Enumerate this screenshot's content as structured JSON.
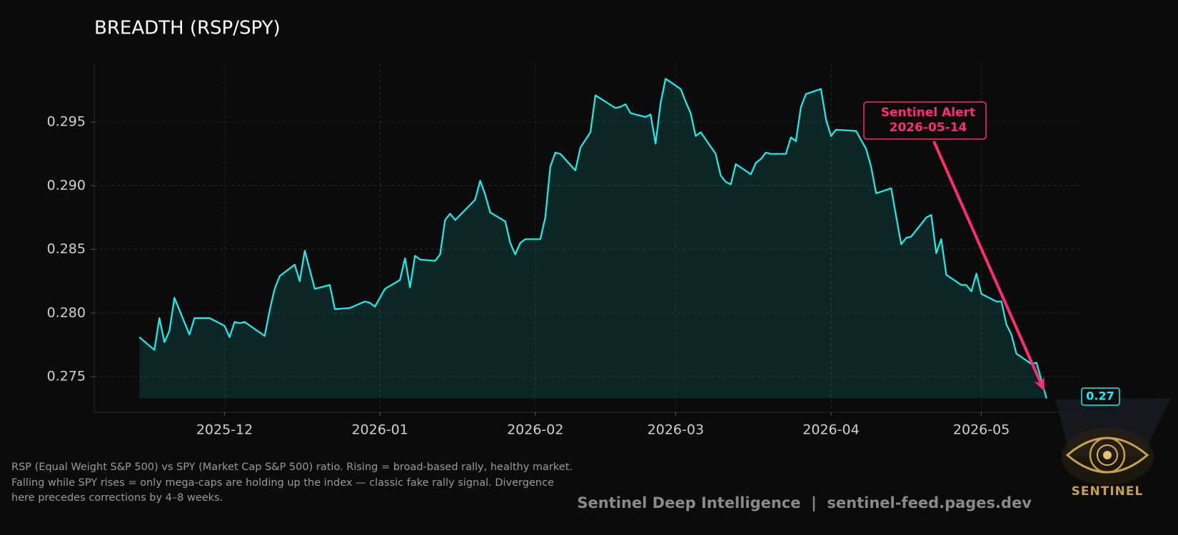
{
  "chart_data": {
    "type": "line",
    "title": "BREADTH (RSP/SPY)",
    "x": [
      "2025-11-14",
      "2025-11-17",
      "2025-11-18",
      "2025-11-19",
      "2025-11-20",
      "2025-11-21",
      "2025-11-24",
      "2025-11-25",
      "2025-11-28",
      "2025-12-01",
      "2025-12-02",
      "2025-12-03",
      "2025-12-04",
      "2025-12-05",
      "2025-12-09",
      "2025-12-10",
      "2025-12-11",
      "2025-12-12",
      "2025-12-15",
      "2025-12-16",
      "2025-12-17",
      "2025-12-19",
      "2025-12-22",
      "2025-12-23",
      "2025-12-26",
      "2025-12-29",
      "2025-12-30",
      "2025-12-31",
      "2026-01-02",
      "2026-01-05",
      "2026-01-06",
      "2026-01-07",
      "2026-01-08",
      "2026-01-09",
      "2026-01-12",
      "2026-01-13",
      "2026-01-14",
      "2026-01-15",
      "2026-01-16",
      "2026-01-20",
      "2026-01-21",
      "2026-01-22",
      "2026-01-23",
      "2026-01-26",
      "2026-01-27",
      "2026-01-28",
      "2026-01-29",
      "2026-01-30",
      "2026-02-02",
      "2026-02-03",
      "2026-02-04",
      "2026-02-05",
      "2026-02-06",
      "2026-02-09",
      "2026-02-10",
      "2026-02-12",
      "2026-02-13",
      "2026-02-17",
      "2026-02-18",
      "2026-02-19",
      "2026-02-20",
      "2026-02-23",
      "2026-02-24",
      "2026-02-25",
      "2026-02-26",
      "2026-02-27",
      "2026-03-02",
      "2026-03-03",
      "2026-03-04",
      "2026-03-05",
      "2026-03-06",
      "2026-03-09",
      "2026-03-10",
      "2026-03-11",
      "2026-03-12",
      "2026-03-13",
      "2026-03-16",
      "2026-03-17",
      "2026-03-18",
      "2026-03-19",
      "2026-03-20",
      "2026-03-23",
      "2026-03-24",
      "2026-03-25",
      "2026-03-26",
      "2026-03-27",
      "2026-03-30",
      "2026-03-31",
      "2026-04-01",
      "2026-04-02",
      "2026-04-06",
      "2026-04-08",
      "2026-04-09",
      "2026-04-10",
      "2026-04-13",
      "2026-04-14",
      "2026-04-15",
      "2026-04-16",
      "2026-04-17",
      "2026-04-20",
      "2026-04-21",
      "2026-04-22",
      "2026-04-23",
      "2026-04-24",
      "2026-04-27",
      "2026-04-28",
      "2026-04-29",
      "2026-04-30",
      "2026-05-01",
      "2026-05-04",
      "2026-05-05",
      "2026-05-06",
      "2026-05-07",
      "2026-05-08",
      "2026-05-11",
      "2026-05-12",
      "2026-05-14"
    ],
    "values": [
      0.2781,
      0.2771,
      0.2796,
      0.2777,
      0.2786,
      0.2812,
      0.2783,
      0.2796,
      0.2796,
      0.279,
      0.2781,
      0.2793,
      0.2792,
      0.2793,
      0.2782,
      0.2802,
      0.2819,
      0.2829,
      0.2838,
      0.2825,
      0.2849,
      0.2819,
      0.2822,
      0.2803,
      0.2804,
      0.2809,
      0.2808,
      0.2805,
      0.2819,
      0.2826,
      0.2843,
      0.282,
      0.2845,
      0.2842,
      0.2841,
      0.2846,
      0.2873,
      0.2878,
      0.2873,
      0.2889,
      0.2904,
      0.2893,
      0.2879,
      0.2872,
      0.2855,
      0.2846,
      0.2855,
      0.2858,
      0.2858,
      0.2875,
      0.2915,
      0.2926,
      0.2925,
      0.2912,
      0.293,
      0.2942,
      0.2971,
      0.2961,
      0.2962,
      0.2964,
      0.2957,
      0.2954,
      0.2956,
      0.2933,
      0.2965,
      0.2984,
      0.2976,
      0.2966,
      0.2957,
      0.2939,
      0.2942,
      0.2925,
      0.2908,
      0.2903,
      0.2901,
      0.2917,
      0.2909,
      0.2918,
      0.2921,
      0.2926,
      0.2925,
      0.2925,
      0.2938,
      0.2935,
      0.2962,
      0.2972,
      0.2976,
      0.2952,
      0.2939,
      0.2944,
      0.2943,
      0.2929,
      0.2915,
      0.2894,
      0.2898,
      0.2876,
      0.2854,
      0.2859,
      0.286,
      0.2875,
      0.2877,
      0.2847,
      0.2858,
      0.283,
      0.2822,
      0.2822,
      0.2817,
      0.2831,
      0.2815,
      0.2809,
      0.2809,
      0.2791,
      0.2783,
      0.2768,
      0.276,
      0.2761,
      0.2733
    ],
    "color": "#19f0f0",
    "end_label": "0.27",
    "xlim": [
      "2025-11-05",
      "2026-05-21"
    ],
    "xticks": [
      "2025-12",
      "2026-01",
      "2026-02",
      "2026-03",
      "2026-04",
      "2026-05"
    ],
    "ylim": [
      0.2722,
      0.2996
    ],
    "yticks": [
      0.275,
      {
        "value": 0.28,
        "label": "0.280"
      },
      0.285,
      {
        "value": 0.29,
        "label": "0.290"
      },
      0.295
    ],
    "grid": true,
    "annotation": {
      "lines": [
        "Sentinel Alert",
        "2026-05-14"
      ],
      "color": "#ff2d6f"
    },
    "description": [
      "RSP (Equal Weight S&P 500) vs SPY (Market Cap S&P 500) ratio. Rising = broad-based rally, healthy market.",
      "Falling while SPY rises = only mega-caps are holding up the index — classic fake rally signal. Divergence",
      "here precedes corrections by 4–8 weeks."
    ],
    "footer": "Sentinel Deep Intelligence  |  sentinel-feed.pages.dev",
    "logo_text": "SENTINEL"
  }
}
